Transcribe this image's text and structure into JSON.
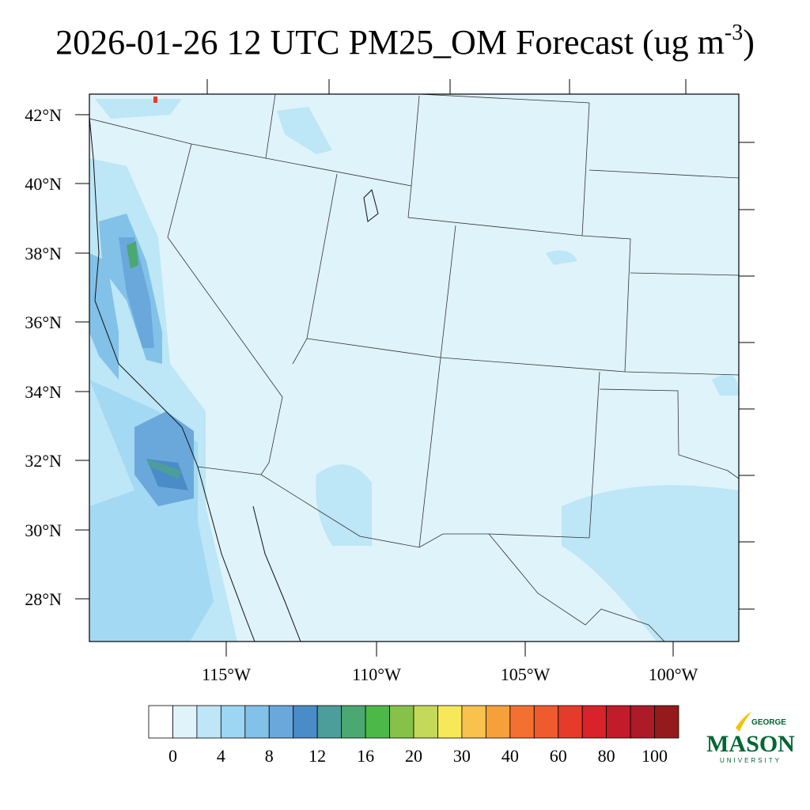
{
  "title": {
    "main": "2026-01-26 12 UTC PM25_OM Forecast (ug m",
    "superscript": "-3",
    "close": ")"
  },
  "map": {
    "lat_labels": [
      "42°N",
      "40°N",
      "38°N",
      "36°N",
      "34°N",
      "32°N",
      "30°N",
      "28°N"
    ],
    "lon_labels": [
      "115°W",
      "110°W",
      "105°W",
      "100°W"
    ]
  },
  "colorbar": {
    "colors": [
      "#ffffff",
      "#dff3fb",
      "#bde6f6",
      "#9dd6f2",
      "#82c1e8",
      "#6aa8dc",
      "#4a8cc8",
      "#4b9e9a",
      "#4aa870",
      "#4cb848",
      "#86c24a",
      "#c4d95a",
      "#f7e85a",
      "#f8c24c",
      "#f6a03c",
      "#f37030",
      "#ef5a2e",
      "#e63b2a",
      "#d9222a",
      "#c21b2a",
      "#ae1a28",
      "#951a1c"
    ],
    "labels": [
      0,
      4,
      8,
      12,
      16,
      20,
      30,
      40,
      60,
      80,
      100
    ]
  },
  "logo": {
    "line1": "GEORGE",
    "line2": "MASON",
    "line3": "UNIVERSITY"
  }
}
